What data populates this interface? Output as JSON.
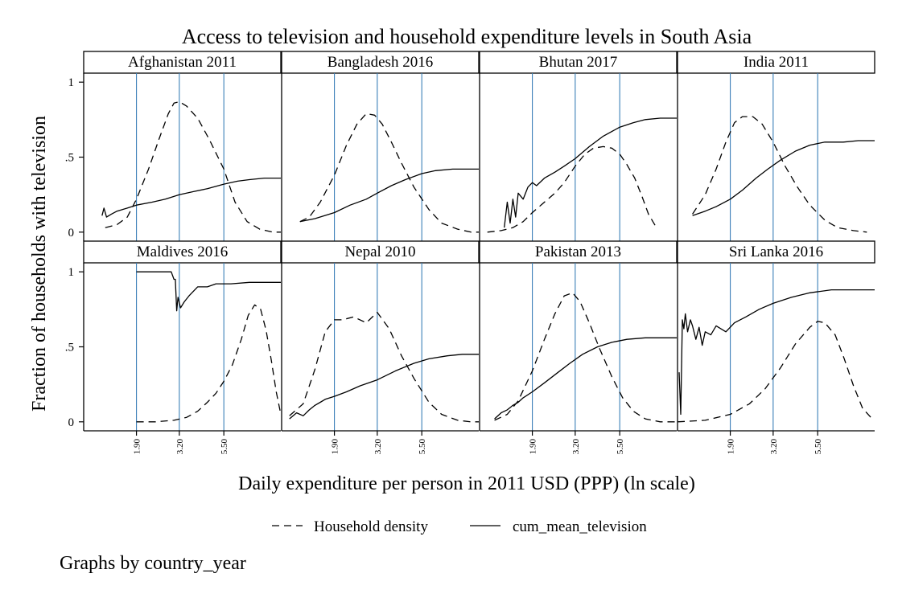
{
  "chart_data": {
    "type": "line",
    "title": "Access to television and household expenditure levels in South Asia",
    "xlabel": "Daily expenditure per person in 2011 USD (PPP) (ln scale)",
    "ylabel": "Fraction of households with television",
    "y_ticks": [
      {
        "value": 0,
        "label": "0"
      },
      {
        "value": 0.5,
        "label": ".5"
      },
      {
        "value": 1,
        "label": "1"
      }
    ],
    "ylim": [
      -0.06,
      1.06
    ],
    "x_scale": "ln",
    "xlim": [
      1.0,
      11.0
    ],
    "x_ticks": [
      {
        "value": 1.9,
        "label": "1.90"
      },
      {
        "value": 3.2,
        "label": "3.20"
      },
      {
        "value": 5.5,
        "label": "5.50"
      }
    ],
    "reference_lines_x": [
      1.9,
      3.2,
      5.5
    ],
    "reference_line_color": "#3a7fb8",
    "legend": {
      "position": "bottom",
      "items": [
        {
          "name": "Household density",
          "style": "dashed"
        },
        {
          "name": "cum_mean_television",
          "style": "solid"
        }
      ]
    },
    "note": "Graphs by country_year",
    "panels": [
      {
        "title": "Afghanistan 2011",
        "series": [
          {
            "name": "Household density",
            "x": [
              1.3,
              1.5,
              1.7,
              1.9,
              2.2,
              2.5,
              2.8,
              3.0,
              3.2,
              3.5,
              4.0,
              4.6,
              5.5,
              6.3,
              7.3,
              8.5,
              10.0,
              11.0
            ],
            "y": [
              0.03,
              0.05,
              0.1,
              0.22,
              0.42,
              0.62,
              0.79,
              0.86,
              0.87,
              0.84,
              0.76,
              0.62,
              0.42,
              0.2,
              0.07,
              0.02,
              0.0,
              0.0
            ]
          },
          {
            "name": "cum_mean_television",
            "x": [
              1.25,
              1.28,
              1.32,
              1.4,
              1.5,
              1.7,
              1.9,
              2.3,
              2.7,
              3.2,
              3.8,
              4.5,
              5.5,
              6.5,
              7.5,
              9.0,
              11.0
            ],
            "y": [
              0.11,
              0.16,
              0.1,
              0.12,
              0.14,
              0.16,
              0.18,
              0.2,
              0.22,
              0.25,
              0.27,
              0.29,
              0.32,
              0.34,
              0.35,
              0.36,
              0.36
            ]
          }
        ]
      },
      {
        "title": "Bangladesh 2016",
        "series": [
          {
            "name": "Household density",
            "x": [
              1.25,
              1.4,
              1.6,
              1.9,
              2.2,
              2.5,
              2.8,
              3.1,
              3.4,
              3.8,
              4.3,
              5.0,
              6.0,
              7.0,
              8.5,
              10.0,
              11.0
            ],
            "y": [
              0.07,
              0.1,
              0.2,
              0.38,
              0.58,
              0.72,
              0.79,
              0.78,
              0.72,
              0.6,
              0.46,
              0.3,
              0.15,
              0.06,
              0.02,
              0.0,
              0.0
            ]
          },
          {
            "name": "cum_mean_television",
            "x": [
              1.25,
              1.5,
              1.9,
              2.3,
              2.8,
              3.2,
              3.8,
              4.5,
              5.5,
              6.5,
              8.0,
              10.0,
              11.0
            ],
            "y": [
              0.07,
              0.09,
              0.13,
              0.18,
              0.22,
              0.26,
              0.31,
              0.35,
              0.39,
              0.41,
              0.42,
              0.42,
              0.42
            ]
          }
        ]
      },
      {
        "title": "Bhutan 2017",
        "series": [
          {
            "name": "Household density",
            "x": [
              1.1,
              1.3,
              1.5,
              1.7,
              1.9,
              2.2,
              2.5,
              2.8,
              3.2,
              3.6,
              4.0,
              4.5,
              5.0,
              5.5,
              6.0,
              6.6,
              7.2,
              7.8,
              8.5
            ],
            "y": [
              0.0,
              0.01,
              0.03,
              0.07,
              0.13,
              0.2,
              0.26,
              0.33,
              0.44,
              0.52,
              0.56,
              0.57,
              0.56,
              0.52,
              0.45,
              0.36,
              0.24,
              0.12,
              0.04
            ]
          },
          {
            "name": "cum_mean_television",
            "x": [
              1.35,
              1.4,
              1.45,
              1.5,
              1.55,
              1.6,
              1.7,
              1.8,
              1.9,
              2.0,
              2.2,
              2.5,
              2.8,
              3.2,
              3.8,
              4.5,
              5.5,
              6.5,
              7.5,
              9.0,
              11.0
            ],
            "y": [
              0.03,
              0.2,
              0.06,
              0.22,
              0.1,
              0.26,
              0.22,
              0.3,
              0.33,
              0.31,
              0.36,
              0.4,
              0.44,
              0.49,
              0.57,
              0.64,
              0.7,
              0.73,
              0.75,
              0.76,
              0.76
            ]
          }
        ]
      },
      {
        "title": "India 2011",
        "series": [
          {
            "name": "Household density",
            "x": [
              1.2,
              1.4,
              1.6,
              1.8,
              2.0,
              2.2,
              2.5,
              2.8,
              3.2,
              3.7,
              4.3,
              5.0,
              6.0,
              7.0,
              8.5,
              10.0
            ],
            "y": [
              0.12,
              0.25,
              0.42,
              0.6,
              0.73,
              0.77,
              0.77,
              0.72,
              0.6,
              0.44,
              0.3,
              0.18,
              0.08,
              0.03,
              0.01,
              0.0
            ]
          },
          {
            "name": "cum_mean_television",
            "x": [
              1.2,
              1.4,
              1.6,
              1.9,
              2.2,
              2.6,
              3.0,
              3.5,
              4.2,
              5.0,
              6.0,
              7.5,
              9.0,
              11.0
            ],
            "y": [
              0.11,
              0.14,
              0.17,
              0.22,
              0.28,
              0.36,
              0.42,
              0.48,
              0.54,
              0.58,
              0.6,
              0.6,
              0.61,
              0.61
            ]
          }
        ]
      },
      {
        "title": "Maldives 2016",
        "series": [
          {
            "name": "Household density",
            "x": [
              1.9,
              2.4,
              3.0,
              3.5,
              4.0,
              4.5,
              5.0,
              5.5,
              6.1,
              6.8,
              7.4,
              8.0,
              8.6,
              9.2,
              9.8,
              10.4,
              11.0
            ],
            "y": [
              0.0,
              0.0,
              0.01,
              0.03,
              0.07,
              0.13,
              0.19,
              0.27,
              0.38,
              0.55,
              0.71,
              0.78,
              0.75,
              0.61,
              0.41,
              0.2,
              0.05
            ]
          },
          {
            "name": "cum_mean_television",
            "x": [
              1.9,
              2.4,
              2.9,
              3.0,
              3.05,
              3.1,
              3.15,
              3.25,
              3.4,
              3.6,
              4.0,
              4.5,
              5.0,
              6.0,
              7.5,
              9.0,
              11.0
            ],
            "y": [
              1.0,
              1.0,
              1.0,
              0.95,
              0.95,
              0.74,
              0.83,
              0.76,
              0.8,
              0.84,
              0.9,
              0.9,
              0.92,
              0.92,
              0.93,
              0.93,
              0.93
            ]
          }
        ]
      },
      {
        "title": "Nepal 2010",
        "series": [
          {
            "name": "Household density",
            "x": [
              1.1,
              1.3,
              1.5,
              1.7,
              1.9,
              2.1,
              2.4,
              2.8,
              3.2,
              3.7,
              4.3,
              5.0,
              6.0,
              7.0,
              8.5,
              10.0,
              11.0
            ],
            "y": [
              0.04,
              0.12,
              0.35,
              0.6,
              0.68,
              0.68,
              0.7,
              0.66,
              0.73,
              0.62,
              0.44,
              0.29,
              0.13,
              0.05,
              0.01,
              0.0,
              0.0
            ]
          },
          {
            "name": "cum_mean_television",
            "x": [
              1.1,
              1.2,
              1.3,
              1.4,
              1.5,
              1.6,
              1.7,
              1.9,
              2.2,
              2.6,
              3.2,
              4.0,
              5.0,
              6.0,
              7.5,
              9.0,
              11.0
            ],
            "y": [
              0.02,
              0.06,
              0.04,
              0.08,
              0.11,
              0.13,
              0.15,
              0.17,
              0.2,
              0.24,
              0.28,
              0.34,
              0.39,
              0.42,
              0.44,
              0.45,
              0.45
            ]
          }
        ]
      },
      {
        "title": "Pakistan 2013",
        "series": [
          {
            "name": "Household density",
            "x": [
              1.2,
              1.4,
              1.6,
              1.9,
              2.2,
              2.5,
              2.8,
              3.1,
              3.4,
              3.8,
              4.3,
              5.0,
              5.7,
              6.5,
              7.5,
              9.0,
              11.0
            ],
            "y": [
              0.01,
              0.05,
              0.14,
              0.34,
              0.55,
              0.72,
              0.84,
              0.86,
              0.8,
              0.66,
              0.49,
              0.3,
              0.16,
              0.07,
              0.02,
              0.0,
              0.0
            ]
          },
          {
            "name": "cum_mean_television",
            "x": [
              1.2,
              1.3,
              1.4,
              1.5,
              1.6,
              1.7,
              1.9,
              2.2,
              2.6,
              3.0,
              3.5,
              4.2,
              5.0,
              6.0,
              7.5,
              9.0,
              11.0
            ],
            "y": [
              0.02,
              0.06,
              0.08,
              0.11,
              0.13,
              0.16,
              0.2,
              0.26,
              0.33,
              0.39,
              0.45,
              0.5,
              0.53,
              0.55,
              0.56,
              0.56,
              0.56
            ]
          }
        ]
      },
      {
        "title": "Sri Lanka 2016",
        "series": [
          {
            "name": "Household density",
            "x": [
              1.0,
              1.4,
              1.9,
              2.4,
              2.9,
              3.5,
              4.2,
              5.0,
              5.5,
              6.0,
              6.8,
              7.6,
              8.5,
              9.5,
              10.5,
              11.0
            ],
            "y": [
              0.0,
              0.01,
              0.05,
              0.12,
              0.22,
              0.36,
              0.52,
              0.63,
              0.67,
              0.66,
              0.58,
              0.42,
              0.24,
              0.09,
              0.03,
              0.02
            ]
          },
          {
            "name": "cum_mean_television",
            "x": [
              1.02,
              1.04,
              1.06,
              1.08,
              1.1,
              1.13,
              1.17,
              1.2,
              1.25,
              1.3,
              1.35,
              1.4,
              1.5,
              1.6,
              1.8,
              2.0,
              2.3,
              2.7,
              3.2,
              4.0,
              5.0,
              6.5,
              8.0,
              11.0
            ],
            "y": [
              0.33,
              0.05,
              0.68,
              0.62,
              0.72,
              0.6,
              0.68,
              0.64,
              0.55,
              0.63,
              0.51,
              0.6,
              0.58,
              0.64,
              0.6,
              0.66,
              0.7,
              0.75,
              0.79,
              0.83,
              0.86,
              0.88,
              0.88,
              0.88
            ]
          }
        ]
      }
    ]
  }
}
